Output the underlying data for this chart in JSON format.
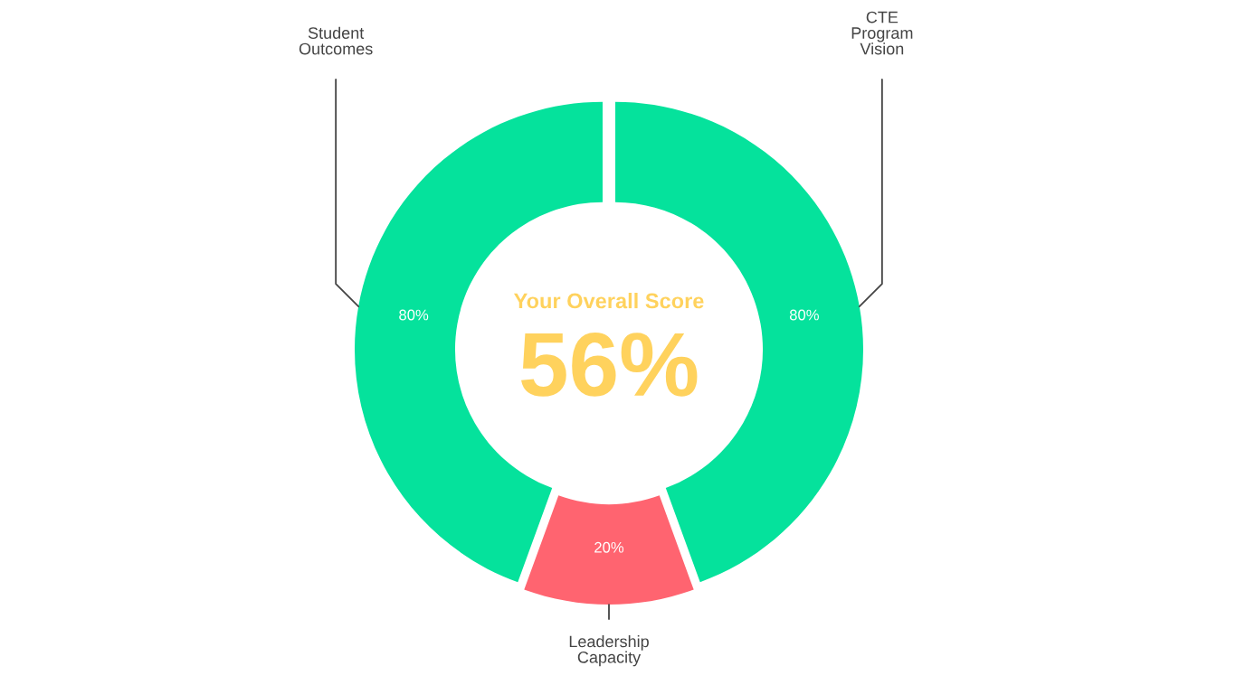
{
  "chart_data": {
    "type": "donut",
    "categories": [
      "CTE Program Vision",
      "Leadership Capacity",
      "Student Outcomes"
    ],
    "values": [
      80,
      20,
      80
    ],
    "colors": [
      "#05e29c",
      "#ff6470",
      "#05e29c"
    ],
    "value_labels": [
      "80%",
      "20%",
      "80%"
    ],
    "annotations": [
      "Your Overall Score",
      "56%"
    ]
  }
}
